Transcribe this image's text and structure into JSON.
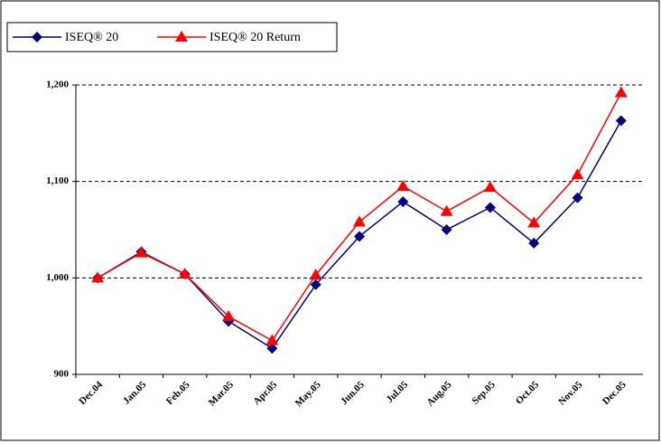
{
  "chart_data": {
    "type": "line",
    "categories": [
      "Dec.04",
      "Jan.05",
      "Feb.05",
      "Mar.05",
      "Apr.05",
      "May.05",
      "Jun.05",
      "Jul.05",
      "Aug.05",
      "Sep.05",
      "Oct.05",
      "Nov.05",
      "Dec.05"
    ],
    "series": [
      {
        "name": "ISEQ® 20",
        "color": "#000080",
        "marker": "diamond",
        "values": [
          1000,
          1027,
          1004,
          955,
          927,
          993,
          1043,
          1079,
          1050,
          1073,
          1036,
          1083,
          1163
        ]
      },
      {
        "name": "ISEQ® 20 Return",
        "color": "#ff0000",
        "marker": "triangle",
        "values": [
          1000,
          1026,
          1004,
          960,
          935,
          1003,
          1058,
          1095,
          1069,
          1094,
          1057,
          1107,
          1192
        ]
      }
    ],
    "ylim": [
      900,
      1200
    ],
    "yticks": [
      {
        "value": 900,
        "label": "900"
      },
      {
        "value": 1000,
        "label": "1,000"
      },
      {
        "value": 1100,
        "label": "1,100"
      },
      {
        "value": 1200,
        "label": "1,200"
      }
    ],
    "grid": true
  }
}
